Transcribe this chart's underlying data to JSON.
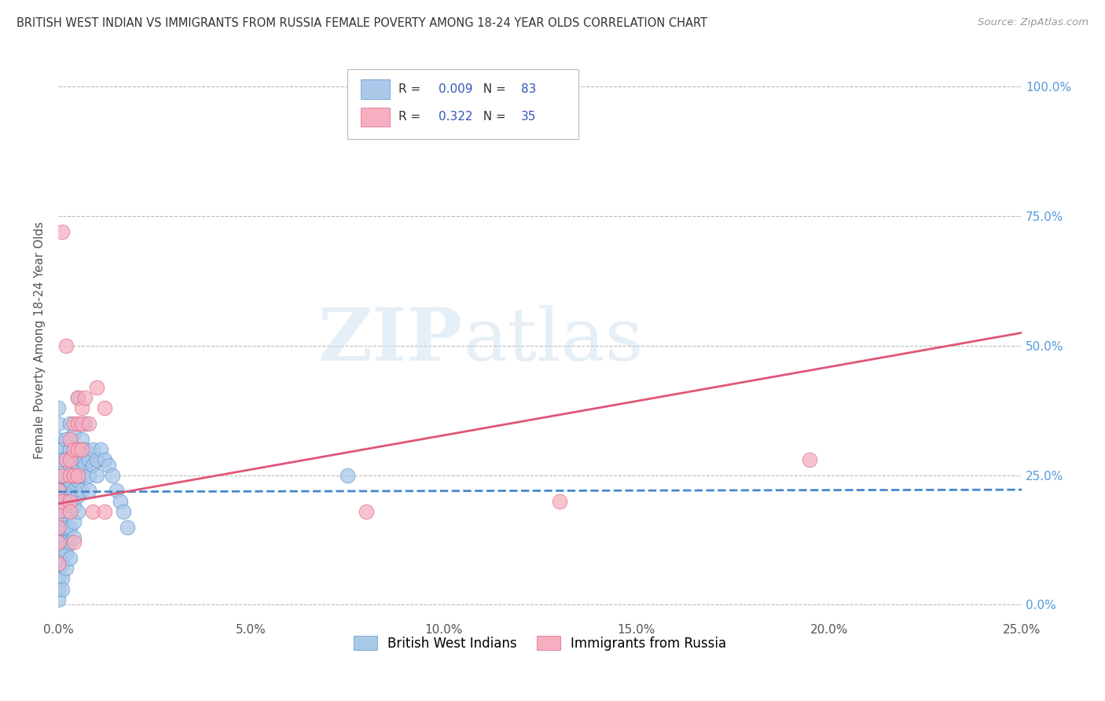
{
  "title": "BRITISH WEST INDIAN VS IMMIGRANTS FROM RUSSIA FEMALE POVERTY AMONG 18-24 YEAR OLDS CORRELATION CHART",
  "source": "Source: ZipAtlas.com",
  "ylabel": "Female Poverty Among 18-24 Year Olds",
  "xlim": [
    0.0,
    0.25
  ],
  "ylim": [
    -0.03,
    1.05
  ],
  "xticks": [
    0.0,
    0.05,
    0.1,
    0.15,
    0.2,
    0.25
  ],
  "xticklabels": [
    "0.0%",
    "5.0%",
    "10.0%",
    "15.0%",
    "20.0%",
    "25.0%"
  ],
  "yticks": [
    0.0,
    0.25,
    0.5,
    0.75,
    1.0
  ],
  "yticklabels_right": [
    "0.0%",
    "25.0%",
    "50.0%",
    "75.0%",
    "100.0%"
  ],
  "watermark_zip": "ZIP",
  "watermark_atlas": "atlas",
  "blue_R": "0.009",
  "blue_N": "83",
  "pink_R": "0.322",
  "pink_N": "35",
  "blue_color": "#aac8e8",
  "pink_color": "#f5afc0",
  "blue_edge_color": "#5590cc",
  "pink_edge_color": "#e06080",
  "blue_line_color": "#4488cc",
  "pink_line_color": "#e05578",
  "grid_color": "#bbbbbb",
  "title_color": "#333333",
  "source_color": "#999999",
  "legend_color": "#3355bb",
  "right_axis_color": "#5599dd",
  "blue_scatter": [
    [
      0.0,
      0.32
    ],
    [
      0.0,
      0.35
    ],
    [
      0.0,
      0.3
    ],
    [
      0.0,
      0.28
    ],
    [
      0.0,
      0.25
    ],
    [
      0.0,
      0.22
    ],
    [
      0.0,
      0.2
    ],
    [
      0.0,
      0.18
    ],
    [
      0.0,
      0.15
    ],
    [
      0.0,
      0.12
    ],
    [
      0.0,
      0.1
    ],
    [
      0.0,
      0.08
    ],
    [
      0.0,
      0.05
    ],
    [
      0.0,
      0.03
    ],
    [
      0.0,
      0.01
    ],
    [
      0.0,
      0.38
    ],
    [
      0.001,
      0.3
    ],
    [
      0.001,
      0.28
    ],
    [
      0.001,
      0.25
    ],
    [
      0.001,
      0.22
    ],
    [
      0.001,
      0.2
    ],
    [
      0.001,
      0.18
    ],
    [
      0.001,
      0.15
    ],
    [
      0.001,
      0.12
    ],
    [
      0.001,
      0.1
    ],
    [
      0.001,
      0.08
    ],
    [
      0.001,
      0.05
    ],
    [
      0.001,
      0.03
    ],
    [
      0.002,
      0.32
    ],
    [
      0.002,
      0.28
    ],
    [
      0.002,
      0.25
    ],
    [
      0.002,
      0.22
    ],
    [
      0.002,
      0.2
    ],
    [
      0.002,
      0.18
    ],
    [
      0.002,
      0.15
    ],
    [
      0.002,
      0.12
    ],
    [
      0.002,
      0.1
    ],
    [
      0.002,
      0.07
    ],
    [
      0.003,
      0.35
    ],
    [
      0.003,
      0.3
    ],
    [
      0.003,
      0.27
    ],
    [
      0.003,
      0.24
    ],
    [
      0.003,
      0.21
    ],
    [
      0.003,
      0.18
    ],
    [
      0.003,
      0.15
    ],
    [
      0.003,
      0.12
    ],
    [
      0.003,
      0.09
    ],
    [
      0.004,
      0.33
    ],
    [
      0.004,
      0.28
    ],
    [
      0.004,
      0.25
    ],
    [
      0.004,
      0.22
    ],
    [
      0.004,
      0.19
    ],
    [
      0.004,
      0.16
    ],
    [
      0.004,
      0.13
    ],
    [
      0.005,
      0.4
    ],
    [
      0.005,
      0.3
    ],
    [
      0.005,
      0.27
    ],
    [
      0.005,
      0.24
    ],
    [
      0.005,
      0.21
    ],
    [
      0.005,
      0.18
    ],
    [
      0.006,
      0.32
    ],
    [
      0.006,
      0.28
    ],
    [
      0.006,
      0.25
    ],
    [
      0.006,
      0.22
    ],
    [
      0.007,
      0.35
    ],
    [
      0.007,
      0.3
    ],
    [
      0.007,
      0.27
    ],
    [
      0.008,
      0.28
    ],
    [
      0.008,
      0.25
    ],
    [
      0.008,
      0.22
    ],
    [
      0.009,
      0.3
    ],
    [
      0.009,
      0.27
    ],
    [
      0.01,
      0.28
    ],
    [
      0.01,
      0.25
    ],
    [
      0.011,
      0.3
    ],
    [
      0.012,
      0.28
    ],
    [
      0.013,
      0.27
    ],
    [
      0.014,
      0.25
    ],
    [
      0.015,
      0.22
    ],
    [
      0.016,
      0.2
    ],
    [
      0.017,
      0.18
    ],
    [
      0.018,
      0.15
    ],
    [
      0.075,
      0.25
    ]
  ],
  "pink_scatter": [
    [
      0.0,
      0.22
    ],
    [
      0.0,
      0.18
    ],
    [
      0.0,
      0.15
    ],
    [
      0.0,
      0.12
    ],
    [
      0.0,
      0.08
    ],
    [
      0.001,
      0.25
    ],
    [
      0.001,
      0.2
    ],
    [
      0.001,
      0.72
    ],
    [
      0.002,
      0.5
    ],
    [
      0.002,
      0.28
    ],
    [
      0.003,
      0.32
    ],
    [
      0.003,
      0.28
    ],
    [
      0.003,
      0.25
    ],
    [
      0.003,
      0.2
    ],
    [
      0.003,
      0.18
    ],
    [
      0.004,
      0.35
    ],
    [
      0.004,
      0.3
    ],
    [
      0.004,
      0.25
    ],
    [
      0.004,
      0.12
    ],
    [
      0.005,
      0.4
    ],
    [
      0.005,
      0.35
    ],
    [
      0.005,
      0.3
    ],
    [
      0.005,
      0.25
    ],
    [
      0.006,
      0.38
    ],
    [
      0.006,
      0.35
    ],
    [
      0.006,
      0.3
    ],
    [
      0.007,
      0.4
    ],
    [
      0.008,
      0.35
    ],
    [
      0.009,
      0.18
    ],
    [
      0.01,
      0.42
    ],
    [
      0.012,
      0.38
    ],
    [
      0.012,
      0.18
    ],
    [
      0.195,
      0.28
    ],
    [
      0.13,
      0.2
    ],
    [
      0.08,
      0.18
    ]
  ],
  "blue_trend_x": [
    0.0,
    0.25
  ],
  "blue_trend_y": [
    0.218,
    0.222
  ],
  "pink_trend_x": [
    0.0,
    0.25
  ],
  "pink_trend_y": [
    0.195,
    0.525
  ],
  "legend_labels": [
    "British West Indians",
    "Immigrants from Russia"
  ],
  "figsize": [
    14.06,
    8.92
  ],
  "dpi": 100
}
